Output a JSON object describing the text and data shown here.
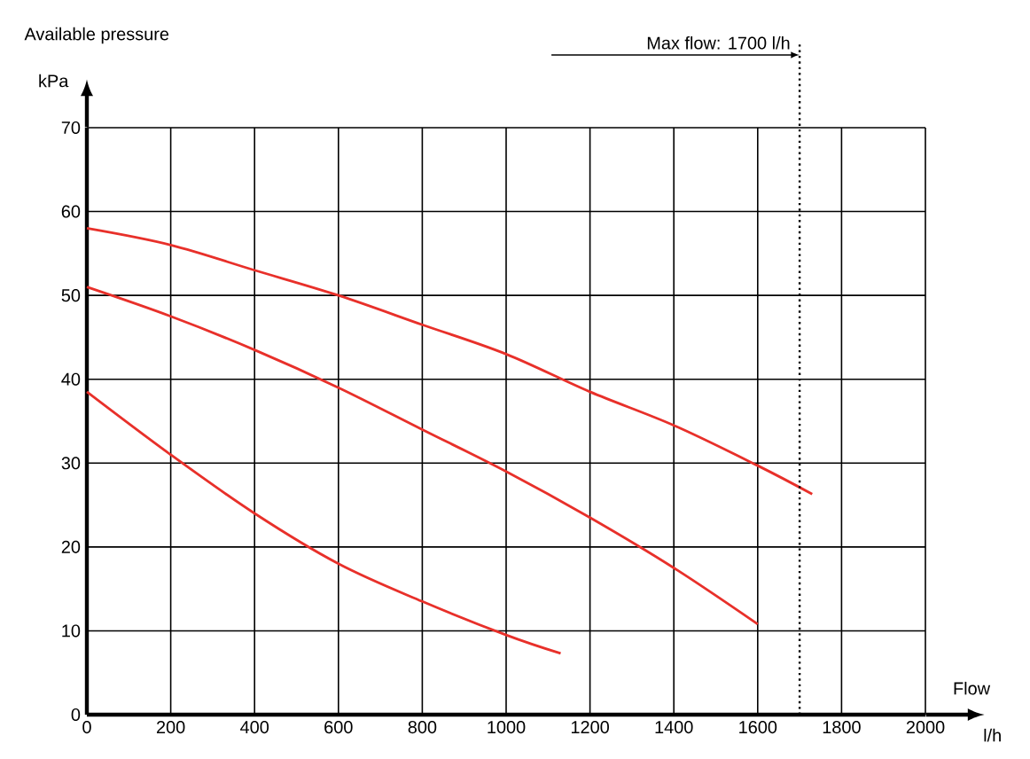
{
  "chart_data": {
    "type": "line",
    "ylabel": "Available pressure",
    "xlabel": "Flow",
    "annotations": [
      "kPa",
      "l/h"
    ],
    "xlim": [
      0,
      2000
    ],
    "xticks": [
      0,
      200,
      400,
      600,
      800,
      1000,
      1200,
      1400,
      1600,
      1800,
      2000
    ],
    "ylim": [
      0,
      70
    ],
    "yticks": [
      0,
      10,
      20,
      30,
      40,
      50,
      60,
      70
    ],
    "grid": true,
    "ref_lines": [
      {
        "axis": "x",
        "value": 1700,
        "label": "Max flow: 1700 l/h",
        "line_style": "dotted"
      }
    ],
    "series": [
      {
        "color": "#e8302a",
        "x": [
          0,
          200,
          400,
          600,
          800,
          1000,
          1200,
          1400,
          1600,
          1730
        ],
        "values": [
          58,
          56,
          53,
          50,
          46.5,
          43,
          38.5,
          34.5,
          29.7,
          26.3
        ]
      },
      {
        "color": "#e8302a",
        "x": [
          0,
          200,
          400,
          600,
          800,
          1000,
          1200,
          1400,
          1600
        ],
        "values": [
          51,
          47.5,
          43.5,
          39,
          34,
          29,
          23.5,
          17.5,
          10.8
        ]
      },
      {
        "color": "#e8302a",
        "x": [
          0,
          200,
          400,
          600,
          800,
          1000,
          1130
        ],
        "values": [
          38.5,
          31,
          24,
          18,
          13.5,
          9.5,
          7.3
        ]
      }
    ]
  }
}
